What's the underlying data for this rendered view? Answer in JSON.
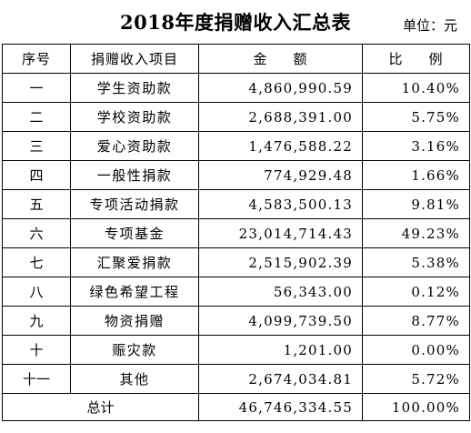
{
  "header": {
    "title": "2018年度捐赠收入汇总表",
    "unit": "单位：元"
  },
  "table": {
    "headers": {
      "index": "序号",
      "item": "捐赠收入项目",
      "amount_left": "金",
      "amount_right": "额",
      "ratio_left": "比",
      "ratio_right": "例"
    },
    "rows": [
      {
        "index": "一",
        "item": "学生资助款",
        "amount": "4,860,990.59",
        "ratio": "10.40%"
      },
      {
        "index": "二",
        "item": "学校资助款",
        "amount": "2,688,391.00",
        "ratio": "5.75%"
      },
      {
        "index": "三",
        "item": "爱心资助款",
        "amount": "1,476,588.22",
        "ratio": "3.16%"
      },
      {
        "index": "四",
        "item": "一般性捐款",
        "amount": "774,929.48",
        "ratio": "1.66%"
      },
      {
        "index": "五",
        "item": "专项活动捐款",
        "amount": "4,583,500.13",
        "ratio": "9.81%"
      },
      {
        "index": "六",
        "item": "专项基金",
        "amount": "23,014,714.43",
        "ratio": "49.23%"
      },
      {
        "index": "七",
        "item": "汇聚爱捐款",
        "amount": "2,515,902.39",
        "ratio": "5.38%"
      },
      {
        "index": "八",
        "item": "绿色希望工程",
        "amount": "56,343.00",
        "ratio": "0.12%"
      },
      {
        "index": "九",
        "item": "物资捐赠",
        "amount": "4,099,739.50",
        "ratio": "8.77%"
      },
      {
        "index": "十",
        "item": "赈灾款",
        "amount": "1,201.00",
        "ratio": "0.00%"
      },
      {
        "index": "十一",
        "item": "其他",
        "amount": "2,674,034.81",
        "ratio": "5.72%"
      }
    ],
    "total": {
      "label": "总计",
      "amount": "46,746,334.55",
      "ratio": "100.00%"
    }
  }
}
